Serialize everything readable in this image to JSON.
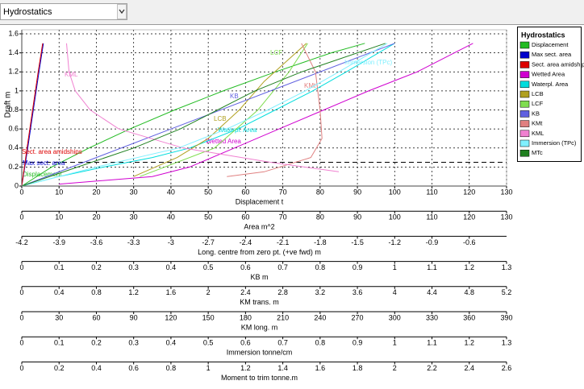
{
  "dropdown": "Hydrostatics",
  "chart_data": {
    "type": "line",
    "legend_title": "Hydrostatics",
    "legend_position": "upper right",
    "ylabel": "Draft  m",
    "ylim": [
      0,
      1.6
    ],
    "yticks": [
      0,
      0.2,
      0.4,
      0.6,
      0.8,
      1,
      1.2,
      1.4,
      1.6
    ],
    "grid": true,
    "waterline_draft": 0.25,
    "axes": [
      {
        "label": "Displacement  t",
        "xlim": [
          0,
          130
        ],
        "xticks": [
          0,
          10,
          20,
          30,
          40,
          50,
          60,
          70,
          80,
          90,
          100,
          110,
          120,
          130
        ]
      },
      {
        "label": "Area  m^2",
        "xlim": [
          0,
          130
        ],
        "xticks": [
          0,
          10,
          20,
          30,
          40,
          50,
          60,
          70,
          80,
          90,
          100,
          110,
          120,
          130
        ]
      },
      {
        "label": "Long. centre  from zero pt. (+ve fwd)  m",
        "xlim": [
          -4.2,
          -0.3
        ],
        "xticks": [
          -4.2,
          -3.9,
          -3.6,
          -3.3,
          -3,
          -2.7,
          -2.4,
          -2.1,
          -1.8,
          -1.5,
          -1.2,
          -0.9,
          -0.6
        ]
      },
      {
        "label": "KB  m",
        "xlim": [
          0,
          1.3
        ],
        "xticks": [
          0,
          0.1,
          0.2,
          0.3,
          0.4,
          0.5,
          0.6,
          0.7,
          0.8,
          0.9,
          1,
          1.1,
          1.2,
          1.3
        ]
      },
      {
        "label": "KM trans.  m",
        "xlim": [
          0,
          5.2
        ],
        "xticks": [
          0,
          0.4,
          0.8,
          1.2,
          1.6,
          2,
          2.4,
          2.8,
          3.2,
          3.6,
          4,
          4.4,
          4.8,
          5.2
        ]
      },
      {
        "label": "KM long.  m",
        "xlim": [
          0,
          390
        ],
        "xticks": [
          0,
          30,
          60,
          90,
          120,
          150,
          180,
          210,
          240,
          270,
          300,
          330,
          360,
          390
        ]
      },
      {
        "label": "Immersion  tonne/cm",
        "xlim": [
          0,
          1.3
        ],
        "xticks": [
          0,
          0.1,
          0.2,
          0.3,
          0.4,
          0.5,
          0.6,
          0.7,
          0.8,
          0.9,
          1,
          1.1,
          1.2,
          1.3
        ]
      },
      {
        "label": "Moment to trim  tonne.m",
        "xlim": [
          0,
          2.6
        ],
        "xticks": [
          0,
          0.2,
          0.4,
          0.6,
          0.8,
          1,
          1.2,
          1.4,
          1.6,
          1.8,
          2,
          2.2,
          2.4,
          2.6
        ]
      }
    ],
    "series": [
      {
        "name": "Displacement",
        "color": "#22bb22",
        "axis": 0,
        "x": [
          0,
          8,
          18,
          29,
          41,
          54,
          68,
          83,
          92
        ],
        "y": [
          0,
          0.2,
          0.4,
          0.6,
          0.8,
          1,
          1.2,
          1.4,
          1.5
        ]
      },
      {
        "name": "Max sect. area",
        "color": "#0000cc",
        "axis": 1,
        "x": [
          0,
          1.6,
          3.1,
          4.6,
          5.8
        ],
        "y": [
          0,
          0.4,
          0.8,
          1.2,
          1.5
        ]
      },
      {
        "name": "Sect. area amidships",
        "color": "#dd0000",
        "axis": 1,
        "x": [
          0,
          1.4,
          2.9,
          4.4,
          5.6
        ],
        "y": [
          0,
          0.4,
          0.8,
          1.2,
          1.5
        ]
      },
      {
        "name": "Wetted Area",
        "color": "#d000d0",
        "axis": 1,
        "x": [
          10,
          35,
          45,
          57,
          69,
          81,
          93,
          106,
          121
        ],
        "y": [
          0.02,
          0.1,
          0.2,
          0.4,
          0.6,
          0.8,
          1,
          1.2,
          1.5
        ]
      },
      {
        "name": "Waterpl. Area",
        "color": "#00dddd",
        "axis": 1,
        "x": [
          0,
          10,
          22,
          35,
          45,
          58,
          68,
          78,
          87,
          100
        ],
        "y": [
          0,
          0.1,
          0.2,
          0.3,
          0.4,
          0.6,
          0.8,
          1,
          1.2,
          1.5
        ]
      },
      {
        "name": "LCB",
        "color": "#b0a020",
        "axis": 2,
        "x": [
          -3.3,
          -2.95,
          -2.7,
          -2.45,
          -2.25,
          -1.91
        ],
        "y": [
          0.1,
          0.3,
          0.5,
          0.8,
          1.1,
          1.5
        ]
      },
      {
        "name": "LCF",
        "color": "#80dd50",
        "axis": 2,
        "x": [
          -3.25,
          -2.65,
          -2.3,
          -2.05,
          -1.9
        ],
        "y": [
          0.1,
          0.4,
          0.8,
          1.2,
          1.5
        ]
      },
      {
        "name": "KB",
        "color": "#6060e0",
        "axis": 3,
        "x": [
          0,
          1
        ],
        "y": [
          0,
          1.5
        ]
      },
      {
        "name": "KMt",
        "color": "#e08080",
        "axis": 4,
        "x": [
          2.2,
          2.6,
          3.1,
          3.22,
          3.2,
          3.15,
          3
        ],
        "y": [
          0.1,
          0.15,
          0.3,
          0.5,
          0.8,
          1.2,
          1.5
        ]
      },
      {
        "name": "KML",
        "color": "#f080d0",
        "axis": 5,
        "x": [
          255,
          200,
          130,
          78,
          55,
          43,
          38,
          36
        ],
        "y": [
          0.15,
          0.25,
          0.4,
          0.6,
          0.8,
          1,
          1.2,
          1.5
        ]
      },
      {
        "name": "Immersion (TPc)",
        "color": "#80f0ff",
        "axis": 6,
        "x": [
          0,
          0.2,
          0.42,
          0.55,
          0.66,
          0.76,
          0.85,
          0.98
        ],
        "y": [
          0,
          0.2,
          0.4,
          0.6,
          0.8,
          1,
          1.2,
          1.5
        ]
      },
      {
        "name": "MTc",
        "color": "#208020",
        "axis": 7,
        "x": [
          0,
          0.3,
          0.6,
          0.85,
          1.05,
          1.25,
          1.5,
          1.95
        ],
        "y": [
          0,
          0.2,
          0.4,
          0.6,
          0.8,
          1,
          1.2,
          1.5
        ]
      }
    ]
  }
}
